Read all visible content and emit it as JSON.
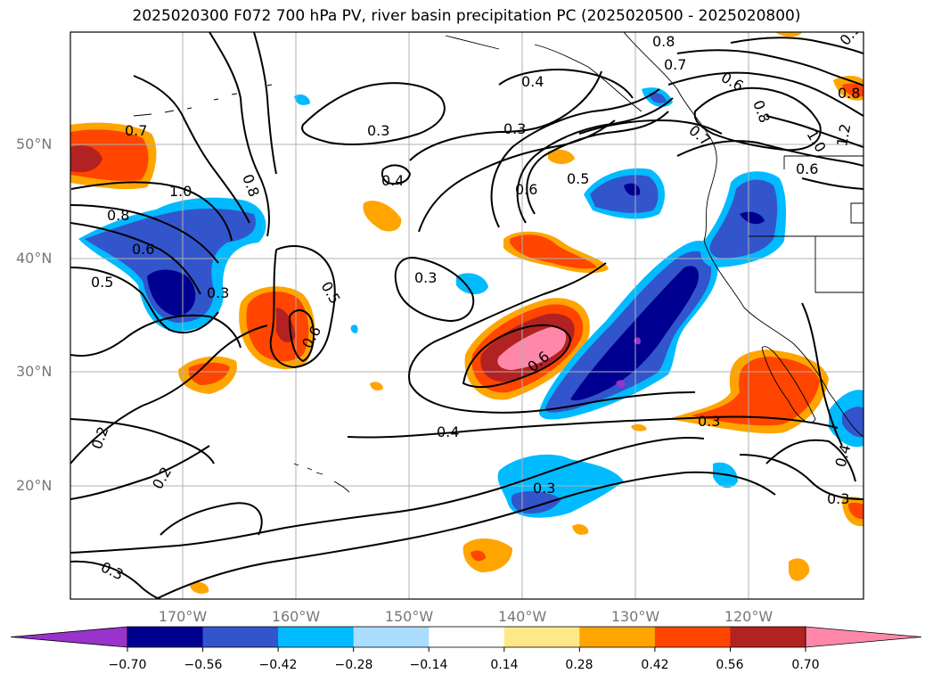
{
  "title": "2025020300 F072 700 hPa PV, river basin precipitation PC (2025020500 - 2025020800)",
  "lat_labels": [
    "50°N",
    "40°N",
    "30°N",
    "20°N"
  ],
  "lon_labels": [
    "170°W",
    "160°W",
    "150°W",
    "140°W",
    "130°W",
    "120°W"
  ],
  "colorbar": {
    "ticks": [
      "−0.70",
      "−0.56",
      "−0.42",
      "−0.28",
      "−0.14",
      "0.14",
      "0.28",
      "0.42",
      "0.56",
      "0.70"
    ],
    "colors": [
      "#9933cc",
      "#000090",
      "#3355cc",
      "#00bbff",
      "#aaddff",
      "#ffffff",
      "#ffe888",
      "#ffa500",
      "#ff4500",
      "#b22222",
      "#ff88aa",
      "#ff88aa"
    ]
  },
  "contour_labels": [
    "0.7",
    "0.8",
    "0.6",
    "0.5",
    "1.0",
    "0.8",
    "0.6",
    "0.5",
    "0.3",
    "0.5",
    "0.6",
    "0.3",
    "0.4",
    "0.3",
    "0.4",
    "0.3",
    "0.6",
    "0.5",
    "0.4",
    "0.8",
    "0.7",
    "0.6",
    "0.8",
    "0.7",
    "1.0",
    "0.6",
    "1.2",
    "0.8",
    "0.3",
    "0.2",
    "0.2",
    "0.3",
    "0.6",
    "0.3",
    "0.4",
    "0.3",
    "0.9"
  ]
}
